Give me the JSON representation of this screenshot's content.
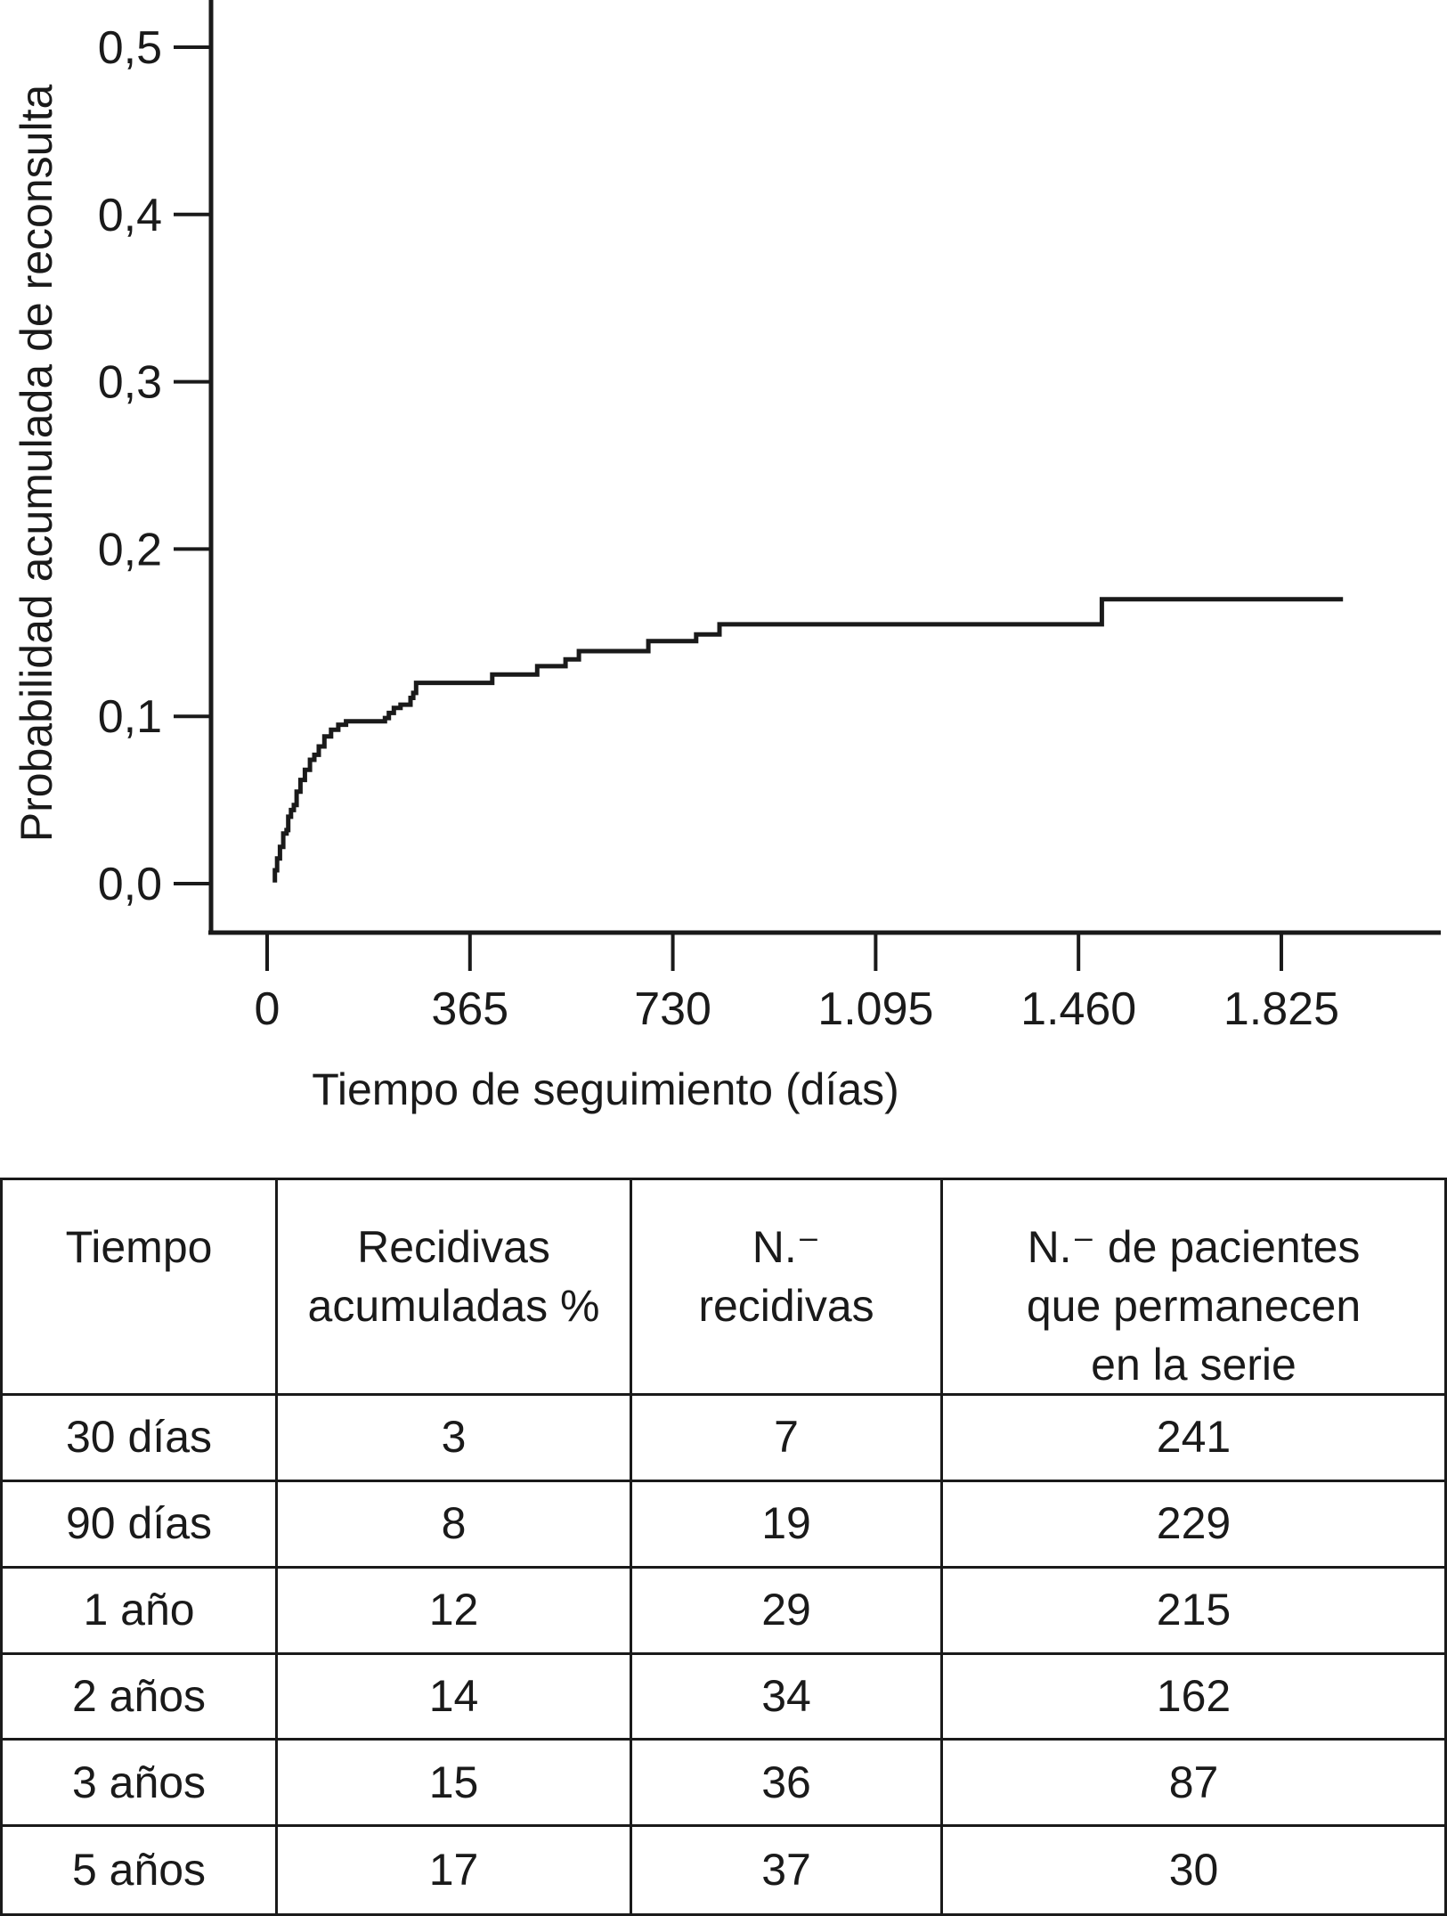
{
  "chart_data": {
    "type": "line",
    "subtype": "kaplan-meier-step-curve",
    "title": "",
    "xlabel": "Tiempo de seguimiento (días)",
    "ylabel": "Probabilidad acumulada de reconsulta",
    "x_ticks": [
      0,
      365,
      730,
      1095,
      1460,
      1825
    ],
    "x_tick_labels": [
      "0",
      "365",
      "730",
      "1.095",
      "1.460",
      "1.825"
    ],
    "y_ticks": [
      0.0,
      0.1,
      0.2,
      0.3,
      0.4,
      0.5
    ],
    "y_tick_labels": [
      "0,0",
      "0,1",
      "0,2",
      "0,3",
      "0,4",
      "0,5"
    ],
    "xlim": [
      -100,
      2110
    ],
    "ylim": [
      -0.03,
      0.53
    ],
    "grid": false,
    "legend": "none",
    "line_color": "#1a1a1a",
    "series": [
      {
        "name": "Probabilidad acumulada de reconsulta",
        "x_units": "días",
        "steps": [
          [
            10,
            0.002
          ],
          [
            14,
            0.008
          ],
          [
            18,
            0.015
          ],
          [
            23,
            0.022
          ],
          [
            29,
            0.03
          ],
          [
            35,
            0.032
          ],
          [
            38,
            0.04
          ],
          [
            43,
            0.044
          ],
          [
            48,
            0.047
          ],
          [
            53,
            0.055
          ],
          [
            60,
            0.062
          ],
          [
            68,
            0.068
          ],
          [
            77,
            0.074
          ],
          [
            85,
            0.077
          ],
          [
            93,
            0.082
          ],
          [
            103,
            0.088
          ],
          [
            115,
            0.092
          ],
          [
            128,
            0.095
          ],
          [
            142,
            0.097
          ],
          [
            212,
            0.099
          ],
          [
            219,
            0.102
          ],
          [
            228,
            0.105
          ],
          [
            240,
            0.107
          ],
          [
            258,
            0.111
          ],
          [
            263,
            0.114
          ],
          [
            268,
            0.12
          ],
          [
            405,
            0.125
          ],
          [
            486,
            0.13
          ],
          [
            537,
            0.134
          ],
          [
            561,
            0.139
          ],
          [
            686,
            0.145
          ],
          [
            772,
            0.149
          ],
          [
            814,
            0.155
          ],
          [
            1502,
            0.17
          ],
          [
            1936,
            0.17
          ]
        ]
      }
    ]
  },
  "table": {
    "headers": [
      {
        "lines": [
          "Tiempo"
        ]
      },
      {
        "lines": [
          "Recidivas",
          "acumuladas %"
        ]
      },
      {
        "lines": [
          "N.⁻",
          "recidivas"
        ]
      },
      {
        "lines": [
          "N.⁻ de pacientes",
          "que permanecen",
          "en la serie"
        ]
      }
    ],
    "rows": [
      [
        "30 días",
        "3",
        "7",
        "241"
      ],
      [
        "90 días",
        "8",
        "19",
        "229"
      ],
      [
        "1 año",
        "12",
        "29",
        "215"
      ],
      [
        "2 años",
        "14",
        "34",
        "162"
      ],
      [
        "3 años",
        "15",
        "36",
        "87"
      ],
      [
        "5 años",
        "17",
        "37",
        "30"
      ]
    ]
  }
}
